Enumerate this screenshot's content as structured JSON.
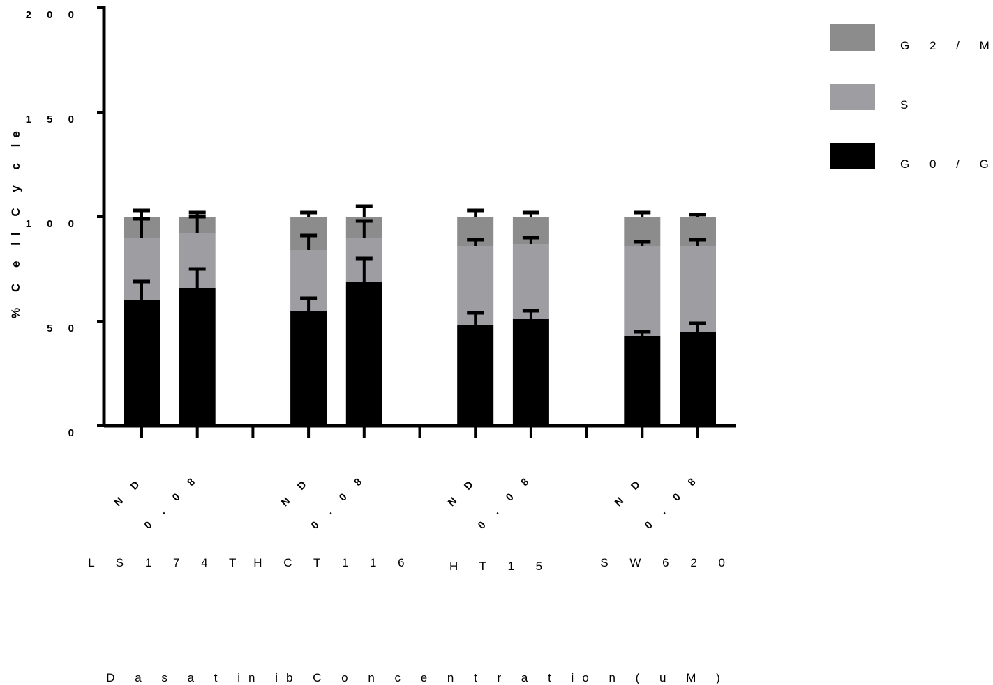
{
  "chart_data": {
    "type": "bar",
    "stacked": true,
    "title": "",
    "xlabel": "D a s a t in ib C o n c e n t r a t io n ( u M )",
    "ylabel": "% C e ll C y c le",
    "ylim": [
      0,
      200
    ],
    "yticks": [
      "0",
      "5 0",
      "1 0 0",
      "1 5 0",
      "2 0 0"
    ],
    "ytick_values": [
      0,
      50,
      100,
      150,
      200
    ],
    "grid": false,
    "legend_position": "top-right",
    "groups": [
      {
        "label": "L S 1 7 4 T",
        "categories": [
          "N D",
          "0 . 0 8"
        ]
      },
      {
        "label": "H C T 1 1 6",
        "categories": [
          "N D",
          "0 . 0 8"
        ]
      },
      {
        "label": "H T 1 5",
        "categories": [
          "N D",
          "0 . 0 8"
        ]
      },
      {
        "label": "S W 6 2 0",
        "categories": [
          "N D",
          "0 . 0 8"
        ]
      }
    ],
    "series": [
      {
        "name": "G 0 / G 1",
        "color": "#000000",
        "values": [
          60,
          66,
          55,
          69,
          48,
          51,
          43,
          45
        ],
        "errors": [
          9,
          9,
          6,
          11,
          6,
          4,
          2,
          4
        ]
      },
      {
        "name": "S",
        "color": "#9d9da2",
        "values": [
          30,
          26,
          29,
          21,
          38,
          36,
          43,
          41
        ],
        "errors": [
          9,
          8,
          7,
          8,
          3,
          3,
          2,
          3
        ]
      },
      {
        "name": "G 2 / M",
        "color": "#8c8c8c",
        "values": [
          10,
          8,
          16,
          10,
          14,
          13,
          14,
          14
        ],
        "errors": [
          3,
          2,
          2,
          5,
          3,
          2,
          2,
          1
        ]
      }
    ]
  }
}
